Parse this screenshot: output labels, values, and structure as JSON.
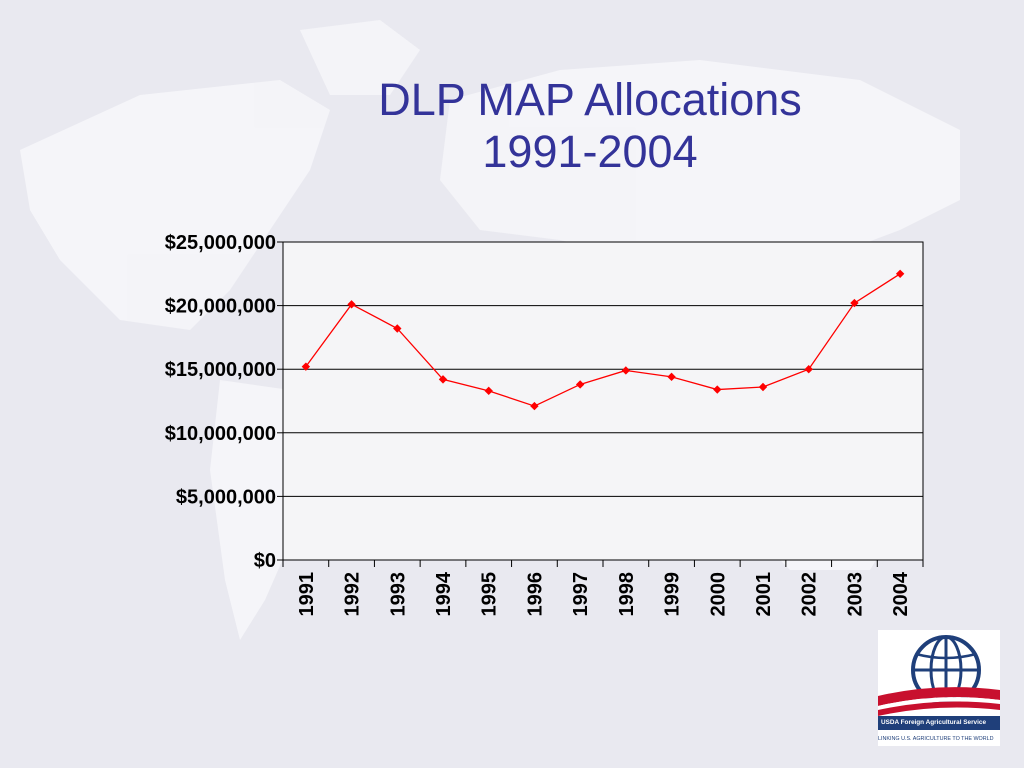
{
  "slide": {
    "title_line1": "DLP MAP Allocations",
    "title_line2": "1991-2004",
    "title_color": "#333399",
    "background_color": "#e9e9f0"
  },
  "chart_data": {
    "type": "line",
    "title": "",
    "xlabel": "",
    "ylabel": "",
    "categories": [
      "1991",
      "1992",
      "1993",
      "1994",
      "1995",
      "1996",
      "1997",
      "1998",
      "1999",
      "2000",
      "2001",
      "2002",
      "2003",
      "2004"
    ],
    "series": [
      {
        "values": [
          15200000,
          20100000,
          18200000,
          14200000,
          13300000,
          12100000,
          13800000,
          14900000,
          14400000,
          13400000,
          13600000,
          15000000,
          20200000,
          22500000
        ],
        "color": "#ff0000",
        "marker": "diamond"
      }
    ],
    "ylim": [
      0,
      25000000
    ],
    "y_ticks": [
      0,
      5000000,
      10000000,
      15000000,
      20000000,
      25000000
    ],
    "y_tick_labels": [
      "$0",
      "$5,000,000",
      "$10,000,000",
      "$15,000,000",
      "$20,000,000",
      "$25,000,000"
    ],
    "grid": true,
    "legend": "none"
  },
  "logo": {
    "icon": "globe-icon",
    "brand": "USDA Foreign Agricultural Service",
    "tagline": "LINKING U.S. AGRICULTURE TO THE WORLD"
  }
}
